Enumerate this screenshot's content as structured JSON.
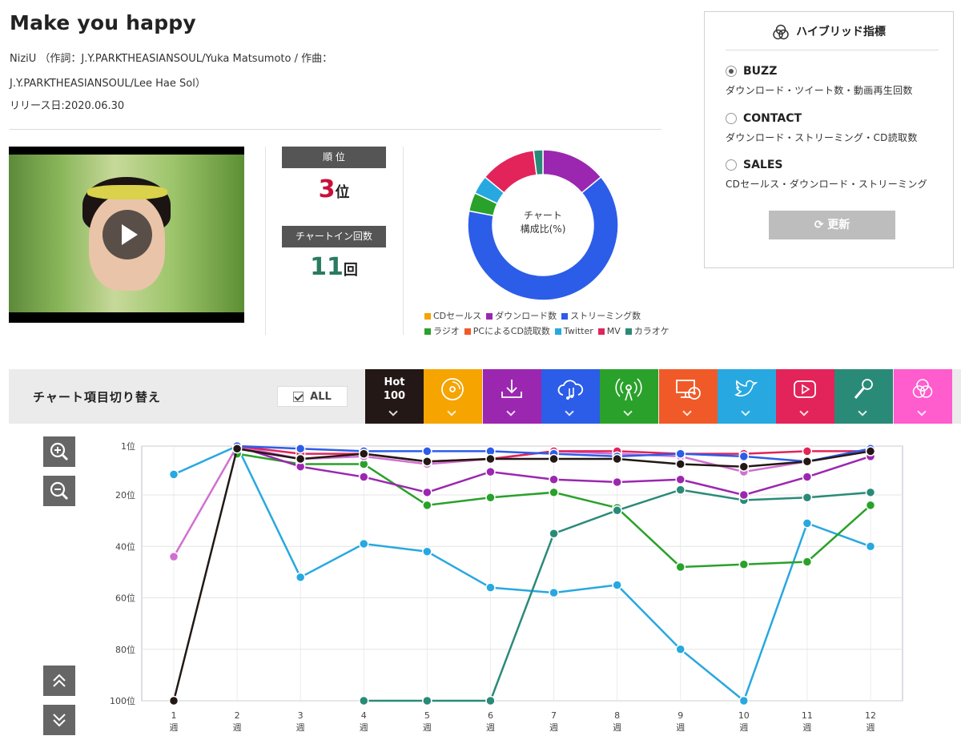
{
  "song": {
    "title": "Make you happy",
    "credit": "NiziU （作詞：J.Y.PARKTHEASIANSOUL/Yuka Matsumoto / 作曲：J.Y.PARKTHEASIANSOUL/Lee Hae Sol）",
    "release": "リリース日:2020.06.30"
  },
  "stats": {
    "rank_label": "順 位",
    "rank_value": "3",
    "rank_unit": "位",
    "rank_color": "#c8103b",
    "count_label": "チャートイン回数",
    "count_value": "11",
    "count_unit": "回",
    "count_color": "#2a7a62"
  },
  "donut": {
    "center_line1": "チャート",
    "center_line2": "構成比(%)",
    "slices": [
      {
        "name": "ダウンロード数",
        "value": 14,
        "color": "#9b27b0"
      },
      {
        "name": "ストリーミング数",
        "value": 64,
        "color": "#2c5de8"
      },
      {
        "name": "ラジオ",
        "value": 4,
        "color": "#2aa12a"
      },
      {
        "name": "Twitter",
        "value": 4,
        "color": "#27a8e0"
      },
      {
        "name": "MV",
        "value": 12,
        "color": "#e2245a"
      },
      {
        "name": "カラオケ",
        "value": 2,
        "color": "#2a8a78"
      }
    ]
  },
  "legend": [
    {
      "label": "CDセールス",
      "color": "#f5a400"
    },
    {
      "label": "ダウンロード数",
      "color": "#9b27b0"
    },
    {
      "label": "ストリーミング数",
      "color": "#2c5de8"
    },
    {
      "label": "ラジオ",
      "color": "#2aa12a"
    },
    {
      "label": "PCによるCD読取数",
      "color": "#f05a28"
    },
    {
      "label": "Twitter",
      "color": "#27a8e0"
    },
    {
      "label": "MV",
      "color": "#e2245a"
    },
    {
      "label": "カラオケ",
      "color": "#2a8a78"
    }
  ],
  "hybrid": {
    "title": "ハイブリッド指標",
    "options": [
      {
        "label": "BUZZ",
        "desc": "ダウンロード・ツイート数・動画再生回数",
        "selected": true
      },
      {
        "label": "CONTACT",
        "desc": "ダウンロード・ストリーミング・CD読取数",
        "selected": false
      },
      {
        "label": "SALES",
        "desc": "CDセールス・ダウンロード・ストリーミング",
        "selected": false
      }
    ],
    "update_label": "更新"
  },
  "switcher": {
    "label": "チャート項目切り替え",
    "all_label": "ALL",
    "hot_line1": "Hot",
    "hot_line2": "100",
    "tabs": [
      {
        "name": "hot100",
        "color": "#231815",
        "icon": "hot-100"
      },
      {
        "name": "cd-sales",
        "color": "#f5a400",
        "icon": "disc-icon"
      },
      {
        "name": "download",
        "color": "#9b27b0",
        "icon": "download-icon"
      },
      {
        "name": "streaming",
        "color": "#2c5de8",
        "icon": "cloud-music-icon"
      },
      {
        "name": "radio",
        "color": "#2aa12a",
        "icon": "radio-icon"
      },
      {
        "name": "pc-cd-read",
        "color": "#f05a28",
        "icon": "pc-disc-icon"
      },
      {
        "name": "twitter",
        "color": "#27a8e0",
        "icon": "twitter-icon"
      },
      {
        "name": "mv",
        "color": "#e2245a",
        "icon": "youtube-icon"
      },
      {
        "name": "karaoke",
        "color": "#2a8a78",
        "icon": "microphone-icon"
      },
      {
        "name": "hybrid",
        "color": "#ff5ccd",
        "icon": "hybrid-icon"
      }
    ]
  },
  "chart_data": {
    "type": "line",
    "x": [
      "1\n週",
      "2\n週",
      "3\n週",
      "4\n週",
      "5\n週",
      "6\n週",
      "7\n週",
      "8\n週",
      "9\n週",
      "10\n週",
      "11\n週",
      "12\n週"
    ],
    "x_labels": [
      "1",
      "2",
      "3",
      "4",
      "5",
      "6",
      "7",
      "8",
      "9",
      "10",
      "11",
      "12"
    ],
    "x_unit": "週",
    "yticks": [
      "1位",
      "20位",
      "40位",
      "60位",
      "80位",
      "100位"
    ],
    "ytick_values": [
      1,
      20,
      40,
      60,
      80,
      100
    ],
    "ylim": [
      1,
      100
    ],
    "y_inverted": true,
    "grid": true,
    "series": [
      {
        "color": "#27a8e0",
        "values": [
          12,
          1,
          52,
          39,
          42,
          56,
          58,
          55,
          80,
          100,
          31,
          40
        ]
      },
      {
        "color": "#2aa12a",
        "values": [
          null,
          4,
          8,
          8,
          24,
          21,
          19,
          25,
          48,
          47,
          46,
          24
        ]
      },
      {
        "color": "#2a8a78",
        "values": [
          null,
          null,
          null,
          100,
          100,
          100,
          35,
          26,
          18,
          22,
          21,
          19
        ]
      },
      {
        "color": "#9b27b0",
        "values": [
          null,
          1,
          9,
          13,
          19,
          11,
          14,
          15,
          14,
          20,
          13,
          5
        ]
      },
      {
        "color": "#d070d0",
        "values": [
          44,
          1,
          6,
          5,
          8,
          6,
          3,
          4,
          5,
          11,
          7,
          3
        ]
      },
      {
        "color": "#e2245a",
        "values": [
          null,
          1,
          4,
          4,
          7,
          6,
          3,
          3,
          4,
          4,
          3,
          3
        ]
      },
      {
        "color": "#2c5de8",
        "values": [
          null,
          1,
          2,
          3,
          3,
          3,
          4,
          5,
          4,
          5,
          7,
          2
        ]
      },
      {
        "color": "#231815",
        "values": [
          100,
          2,
          6,
          4,
          7,
          6,
          6,
          6,
          8,
          9,
          7,
          3
        ]
      }
    ]
  }
}
